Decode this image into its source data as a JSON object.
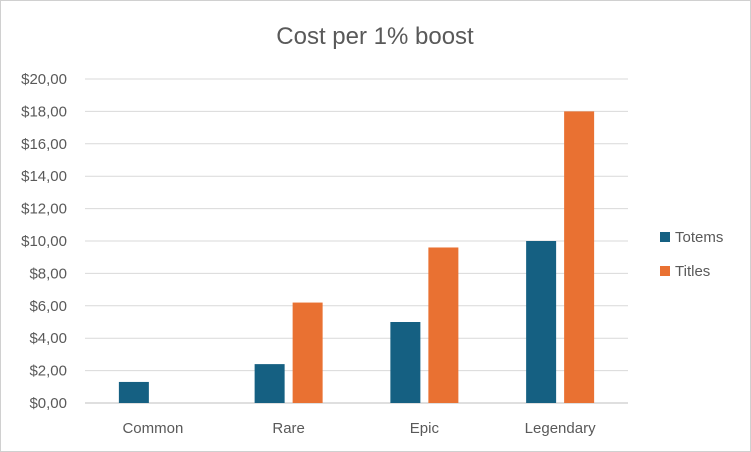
{
  "chart_data": {
    "type": "bar",
    "title": "Cost per 1% boost",
    "categories": [
      "Common",
      "Rare",
      "Epic",
      "Legendary"
    ],
    "series": [
      {
        "name": "Totems",
        "color": "#156082",
        "values": [
          1.3,
          2.4,
          5.0,
          10.0
        ]
      },
      {
        "name": "Titles",
        "color": "#E97132",
        "values": [
          null,
          6.2,
          9.6,
          18.0
        ]
      }
    ],
    "ylim": [
      0,
      20
    ],
    "yticks": [
      0,
      2,
      4,
      6,
      8,
      10,
      12,
      14,
      16,
      18,
      20
    ],
    "ytick_labels": [
      "$0,00",
      "$2,00",
      "$4,00",
      "$6,00",
      "$8,00",
      "$10,00",
      "$12,00",
      "$14,00",
      "$16,00",
      "$18,00",
      "$20,00"
    ],
    "grid": true,
    "legend_position": "right"
  }
}
